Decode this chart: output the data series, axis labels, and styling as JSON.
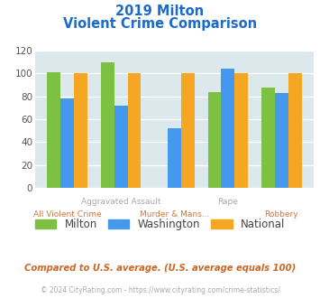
{
  "title_line1": "2019 Milton",
  "title_line2": "Violent Crime Comparison",
  "categories": [
    "All Violent Crime",
    "Aggravated Assault",
    "Murder & Mans...",
    "Rape",
    "Robbery"
  ],
  "series": {
    "Milton": [
      101,
      110,
      0,
      84,
      88
    ],
    "Washington": [
      78,
      72,
      52,
      104,
      83
    ],
    "National": [
      100,
      100,
      100,
      100,
      100
    ]
  },
  "colors": {
    "Milton": "#7dc142",
    "Washington": "#4499ee",
    "National": "#f5a623"
  },
  "ylim": [
    0,
    120
  ],
  "yticks": [
    0,
    20,
    40,
    60,
    80,
    100,
    120
  ],
  "plot_bg": "#dce9ec",
  "footer_text": "Compared to U.S. average. (U.S. average equals 100)",
  "copyright_text": "© 2024 CityRating.com - https://www.cityrating.com/crime-statistics/",
  "title_color": "#1a6bcc",
  "footer_color": "#cc6622",
  "copyright_color": "#aaaaaa",
  "xlabel_top_color": "#aaaaaa",
  "xlabel_bottom_color": "#cc7744"
}
